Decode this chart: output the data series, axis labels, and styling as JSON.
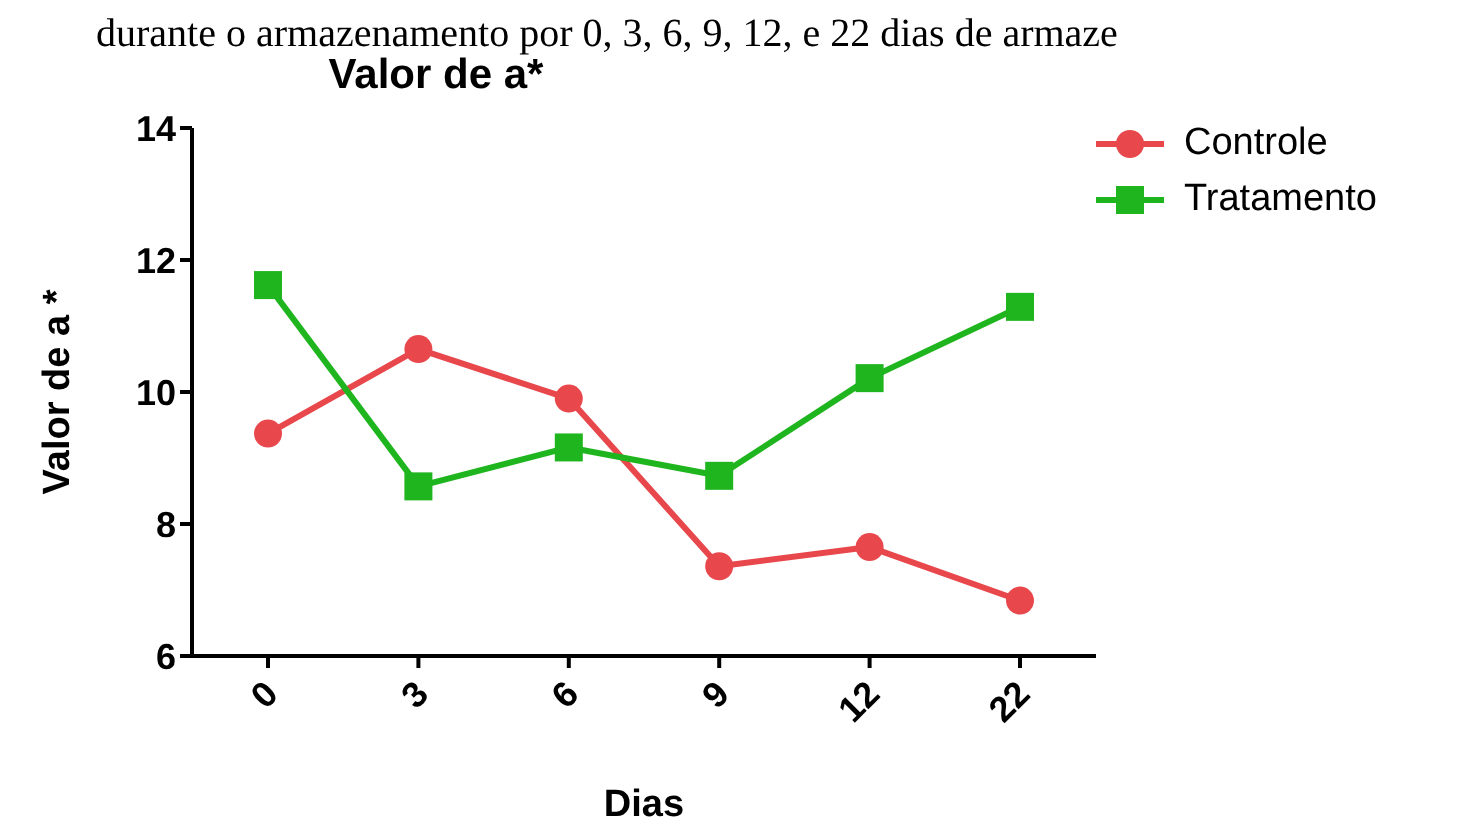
{
  "chart_data": {
    "type": "line",
    "title": "Valor de a*",
    "xlabel": "Dias",
    "ylabel": "Valor de a *",
    "annotations": [
      "durante o armazenamento por 0, 3, 6, 9, 12, e 22 dias de armaze"
    ],
    "categories": [
      "0",
      "3",
      "6",
      "9",
      "12",
      "22"
    ],
    "series": [
      {
        "name": "Controle",
        "color": "#e8474c",
        "marker": "circle",
        "values": [
          9.37,
          10.65,
          9.9,
          7.36,
          7.65,
          6.84
        ]
      },
      {
        "name": "Tratamento",
        "color": "#1fb51f",
        "marker": "square",
        "values": [
          11.62,
          8.57,
          9.16,
          8.73,
          10.21,
          11.29
        ]
      }
    ],
    "ylim": [
      6,
      14
    ],
    "yticks": [
      6,
      8,
      10,
      12,
      14
    ],
    "grid": false,
    "legend": "top right"
  }
}
